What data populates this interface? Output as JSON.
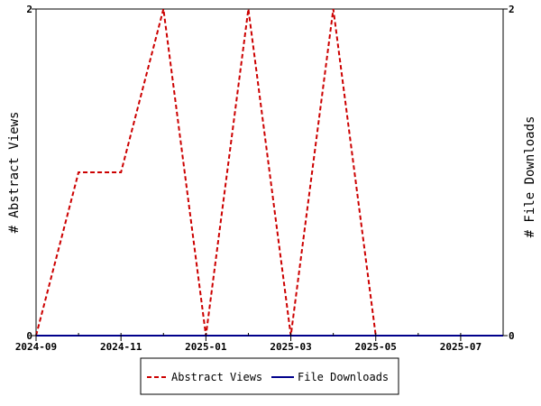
{
  "chart_data": {
    "type": "line",
    "x": [
      "2024-09",
      "2024-10",
      "2024-11",
      "2024-12",
      "2025-01",
      "2025-02",
      "2025-03",
      "2025-04",
      "2025-05",
      "2025-06",
      "2025-07",
      "2025-08"
    ],
    "x_ticks": [
      "2024-09",
      "2024-11",
      "2025-01",
      "2025-03",
      "2025-05",
      "2025-07"
    ],
    "series": [
      {
        "name": "Abstract Views",
        "axis": "left",
        "color": "#cc0000",
        "dash": "dashed",
        "values": [
          0,
          1,
          1,
          2,
          0,
          2,
          0,
          2,
          0,
          0,
          0,
          0
        ]
      },
      {
        "name": "File Downloads",
        "axis": "right",
        "color": "#00008b",
        "dash": "solid",
        "values": [
          0,
          0,
          0,
          0,
          0,
          0,
          0,
          0,
          0,
          0,
          0,
          0
        ]
      }
    ],
    "ylabel_left": "# Abstract Views",
    "ylabel_right": "# File Downloads",
    "ylim_left": [
      0,
      2
    ],
    "ylim_right": [
      0,
      2
    ],
    "y_ticks_left": [
      "0",
      "2"
    ],
    "y_ticks_right": [
      "0",
      "2"
    ],
    "legend_position": "bottom",
    "grid": false
  }
}
